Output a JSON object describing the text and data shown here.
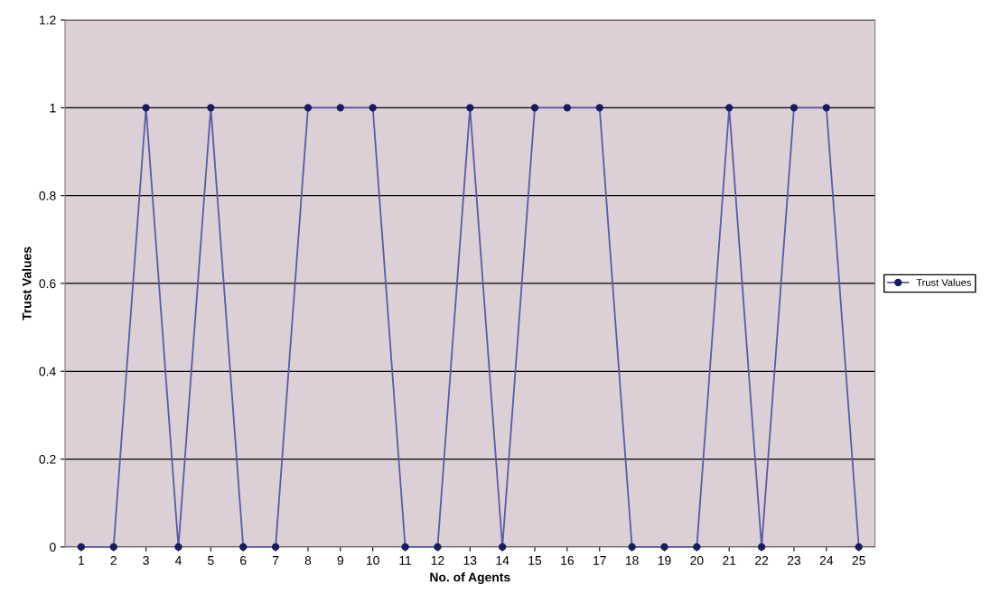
{
  "chart_data": {
    "type": "line",
    "xlabel": "No. of Agents",
    "ylabel": "Trust Values",
    "categories": [
      "1",
      "2",
      "3",
      "4",
      "5",
      "6",
      "7",
      "8",
      "9",
      "10",
      "11",
      "12",
      "13",
      "14",
      "15",
      "16",
      "17",
      "18",
      "19",
      "20",
      "21",
      "22",
      "23",
      "24",
      "25"
    ],
    "series": [
      {
        "name": "Trust Values",
        "color": "#5a5aa8",
        "values": [
          0,
          0,
          1,
          0,
          1,
          0,
          0,
          1,
          1,
          1,
          0,
          0,
          1,
          0,
          1,
          1,
          1,
          0,
          0,
          0,
          1,
          0,
          1,
          1,
          0
        ]
      }
    ],
    "ylim": [
      0,
      1.2
    ],
    "yticks": [
      0,
      0.2,
      0.4,
      0.6,
      0.8,
      1,
      1.2
    ],
    "grid": "y",
    "legend": "right",
    "marker": "circle",
    "line_style": "solid"
  }
}
